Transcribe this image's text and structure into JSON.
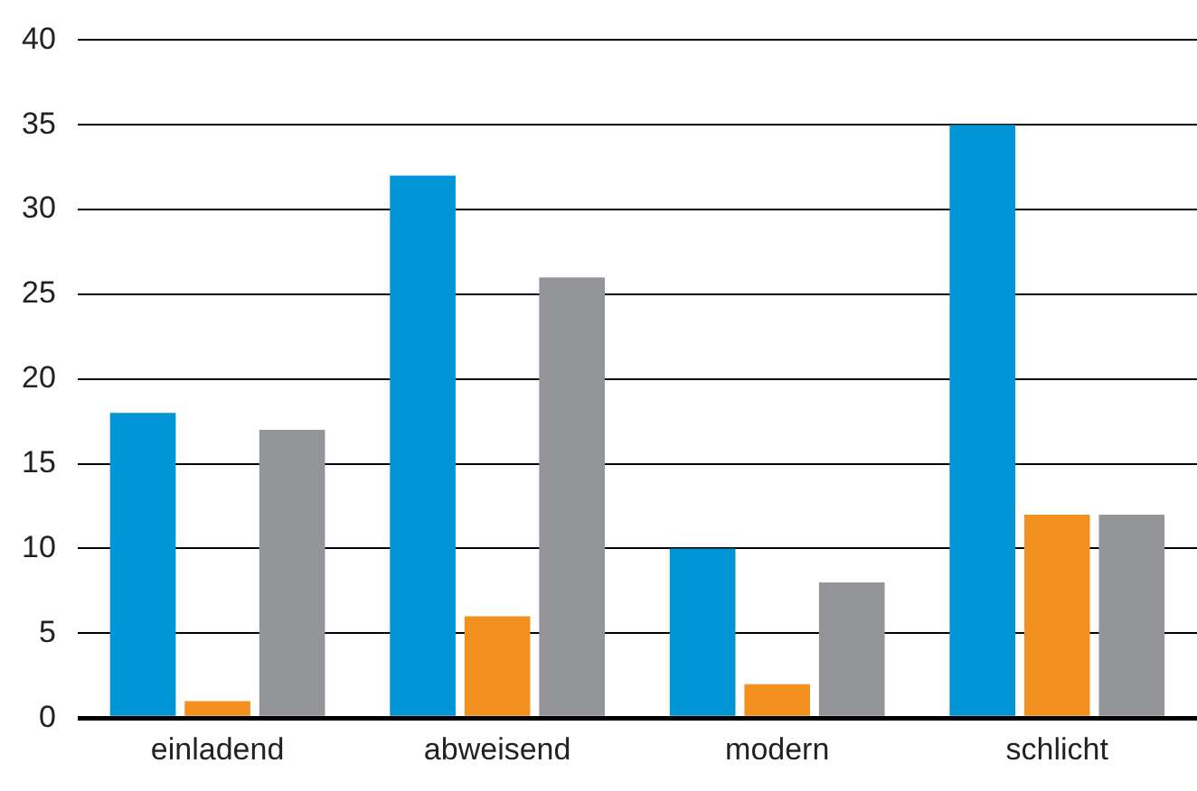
{
  "chart_data": {
    "type": "bar",
    "categories": [
      "einladend",
      "abweisend",
      "modern",
      "schlicht"
    ],
    "series": [
      {
        "color": "#0096d6",
        "values": [
          18,
          32,
          10,
          35
        ]
      },
      {
        "color": "#f39120",
        "values": [
          1,
          6,
          2,
          12
        ]
      },
      {
        "color": "#939598",
        "values": [
          17,
          26,
          8,
          12
        ]
      }
    ],
    "ylim": [
      0,
      40
    ],
    "yticks": [
      0,
      5,
      10,
      15,
      20,
      25,
      30,
      35,
      40
    ],
    "grid": "y",
    "legend": false
  }
}
